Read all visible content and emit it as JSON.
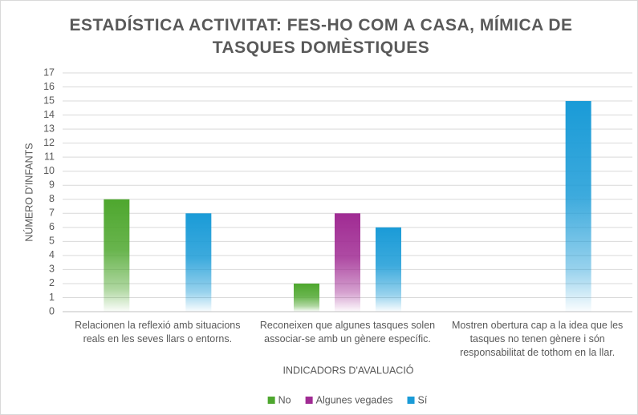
{
  "chart_data": {
    "type": "bar",
    "title": "ESTADÍSTICA ACTIVITAT: FES-HO COM A CASA, MÍMICA DE TASQUES DOMÈSTIQUES",
    "x_label": "INDICADORS D'AVALUACIÓ",
    "y_label": "NÚMERO D'INFANTS",
    "categories": [
      "Relacionen la reflexió amb situacions reals en les seves llars o entorns.",
      "Reconeixen que algunes tasques solen associar-se amb un gènere específic.",
      "Mostren obertura cap a la idea que les tasques no tenen gènere i són responsabilitat de tothom en la llar."
    ],
    "series": [
      {
        "name": "No",
        "color": "#4ea72e",
        "values": [
          8,
          2,
          0
        ]
      },
      {
        "name": "Algunes vegades",
        "color": "#a02b93",
        "values": [
          0,
          7,
          0
        ]
      },
      {
        "name": "Sí",
        "color": "#1a9bd7",
        "values": [
          7,
          6,
          15
        ]
      }
    ],
    "ylim": [
      0,
      17
    ],
    "yticks": [
      0,
      1,
      2,
      3,
      4,
      5,
      6,
      7,
      8,
      9,
      10,
      11,
      12,
      13,
      14,
      15,
      16,
      17
    ],
    "grid": true,
    "legend": "bottom"
  }
}
